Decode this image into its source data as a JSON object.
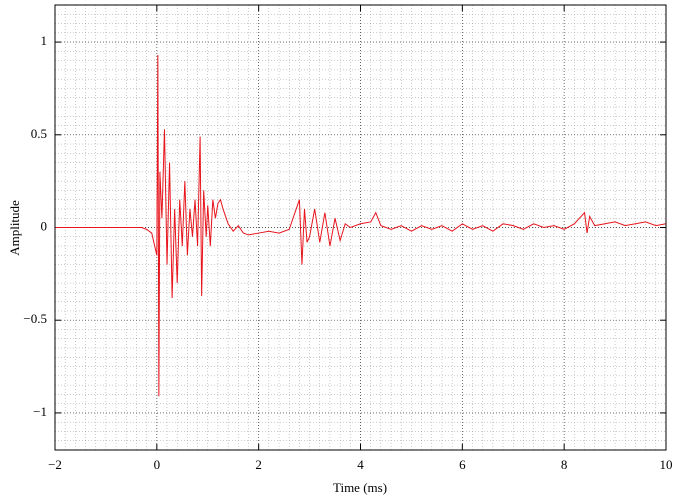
{
  "chart_data": {
    "type": "line",
    "xlabel": "Time (ms)",
    "ylabel": "Amplitude",
    "x": [
      -2,
      -0.3,
      -0.2,
      -0.1,
      0,
      0.02,
      0.04,
      0.06,
      0.1,
      0.15,
      0.2,
      0.25,
      0.3,
      0.35,
      0.4,
      0.45,
      0.5,
      0.55,
      0.6,
      0.65,
      0.7,
      0.75,
      0.8,
      0.85,
      0.88,
      0.92,
      0.97,
      1.0,
      1.05,
      1.1,
      1.15,
      1.2,
      1.25,
      1.3,
      1.4,
      1.5,
      1.6,
      1.7,
      1.8,
      2.0,
      2.2,
      2.4,
      2.6,
      2.8,
      2.85,
      2.9,
      2.95,
      3.0,
      3.1,
      3.2,
      3.3,
      3.4,
      3.5,
      3.6,
      3.7,
      3.8,
      4.0,
      4.2,
      4.3,
      4.4,
      4.6,
      4.8,
      5.0,
      5.2,
      5.4,
      5.6,
      5.8,
      6.0,
      6.2,
      6.4,
      6.6,
      6.8,
      7.0,
      7.2,
      7.4,
      7.6,
      7.8,
      8.0,
      8.2,
      8.4,
      8.45,
      8.5,
      8.6,
      8.8,
      9.0,
      9.2,
      9.4,
      9.6,
      9.8,
      10
    ],
    "values": [
      0,
      0,
      -0.01,
      -0.03,
      -0.15,
      0.93,
      -0.91,
      0.3,
      0.05,
      0.53,
      -0.2,
      0.35,
      -0.38,
      0.1,
      -0.3,
      0.15,
      -0.1,
      0.25,
      -0.15,
      0.1,
      -0.05,
      0.15,
      -0.1,
      0.49,
      -0.37,
      0.2,
      -0.05,
      0.12,
      -0.1,
      0.15,
      0.05,
      0.13,
      0.15,
      0.1,
      0.02,
      -0.02,
      0.01,
      -0.03,
      -0.04,
      -0.03,
      -0.02,
      -0.03,
      -0.01,
      0.15,
      -0.2,
      0.1,
      -0.08,
      -0.05,
      0.1,
      -0.08,
      0.08,
      -0.1,
      0.05,
      -0.07,
      0.02,
      0,
      0.02,
      0.03,
      0.08,
      0.01,
      -0.01,
      0.01,
      -0.02,
      0.01,
      -0.01,
      0.01,
      -0.02,
      0.02,
      -0.01,
      0.01,
      -0.02,
      0.02,
      0.01,
      -0.01,
      0.02,
      0,
      0.01,
      -0.01,
      0.02,
      0.08,
      -0.03,
      0.06,
      0.01,
      0.02,
      0.03,
      0.01,
      0.02,
      0.03,
      0.01,
      0.02
    ],
    "color": "#e8141c",
    "xlim": [
      -2,
      10
    ],
    "xticks": [
      {
        "value": -2,
        "label": "−2"
      },
      0,
      2,
      4,
      6,
      8,
      10
    ],
    "ylim": [
      -1.2,
      1.2
    ],
    "yticks": [
      {
        "value": -1,
        "label": "−1"
      },
      {
        "value": -0.5,
        "label": "−0.5"
      },
      0,
      0.5,
      1
    ],
    "grid": true,
    "minor_grid_divisions": 10
  }
}
